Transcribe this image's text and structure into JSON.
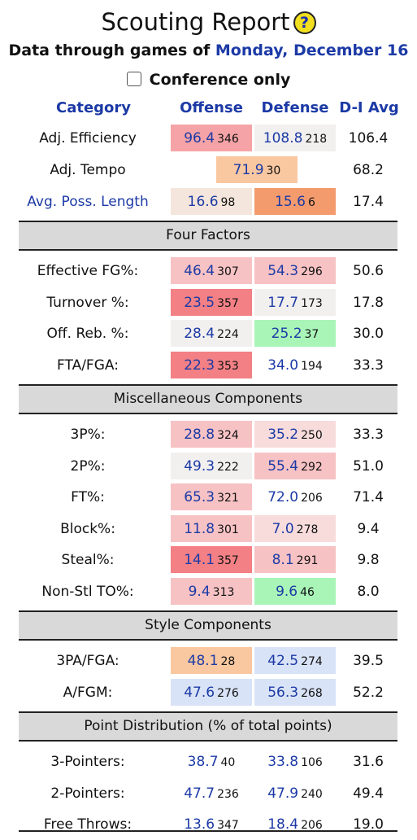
{
  "title": "Scouting Report",
  "help_icon": "?",
  "subtitle_prefix": "Data through games of",
  "subtitle_date": "Monday, December 16",
  "conference_label": "Conference only",
  "headers": {
    "category": "Category",
    "offense": "Offense",
    "defense": "Defense",
    "avg": "D-I Avg"
  },
  "colors": {
    "red-strong": "#f28084",
    "red-medium": "#f5a3a6",
    "red-light": "#f7c2c4",
    "pink-light": "#f8dcdc",
    "neutral": "#f2f0ef",
    "blue-light": "#d9e3f7",
    "peach": "#f9c7a0",
    "orange": "#f49b6e",
    "green": "#a9f5b8",
    "beige": "#f4e6dc",
    "white": "#ffffff"
  },
  "top_rows": [
    {
      "label": "Adj. Efficiency",
      "link": false,
      "off": {
        "v": "96.4",
        "r": "346",
        "c": "red-medium"
      },
      "def": {
        "v": "108.8",
        "r": "218",
        "c": "neutral"
      },
      "avg": "106.4"
    },
    {
      "label": "Adj. Tempo",
      "link": false,
      "tempo": {
        "v": "71.9",
        "r": "30",
        "c": "peach"
      },
      "avg": "68.2"
    },
    {
      "label": "Avg. Poss. Length",
      "link": true,
      "off": {
        "v": "16.6",
        "r": "98",
        "c": "beige"
      },
      "def": {
        "v": "15.6",
        "r": "6",
        "c": "orange"
      },
      "avg": "17.4"
    }
  ],
  "sections": [
    {
      "title": "Four Factors",
      "rows": [
        {
          "label": "Effective FG%:",
          "off": {
            "v": "46.4",
            "r": "307",
            "c": "red-light"
          },
          "def": {
            "v": "54.3",
            "r": "296",
            "c": "red-light"
          },
          "avg": "50.6"
        },
        {
          "label": "Turnover %:",
          "off": {
            "v": "23.5",
            "r": "357",
            "c": "red-strong"
          },
          "def": {
            "v": "17.7",
            "r": "173",
            "c": "neutral"
          },
          "avg": "17.8"
        },
        {
          "label": "Off. Reb. %:",
          "off": {
            "v": "28.4",
            "r": "224",
            "c": "neutral"
          },
          "def": {
            "v": "25.2",
            "r": "37",
            "c": "green"
          },
          "avg": "30.0"
        },
        {
          "label": "FTA/FGA:",
          "off": {
            "v": "22.3",
            "r": "353",
            "c": "red-strong"
          },
          "def": {
            "v": "34.0",
            "r": "194",
            "c": "white"
          },
          "avg": "33.3"
        }
      ]
    },
    {
      "title": "Miscellaneous Components",
      "rows": [
        {
          "label": "3P%:",
          "off": {
            "v": "28.8",
            "r": "324",
            "c": "red-light"
          },
          "def": {
            "v": "35.2",
            "r": "250",
            "c": "pink-light"
          },
          "avg": "33.3"
        },
        {
          "label": "2P%:",
          "off": {
            "v": "49.3",
            "r": "222",
            "c": "neutral"
          },
          "def": {
            "v": "55.4",
            "r": "292",
            "c": "red-light"
          },
          "avg": "51.0"
        },
        {
          "label": "FT%:",
          "off": {
            "v": "65.3",
            "r": "321",
            "c": "red-light"
          },
          "def": {
            "v": "72.0",
            "r": "206",
            "c": "white"
          },
          "avg": "71.4"
        },
        {
          "label": "Block%:",
          "off": {
            "v": "11.8",
            "r": "301",
            "c": "red-light"
          },
          "def": {
            "v": "7.0",
            "r": "278",
            "c": "pink-light"
          },
          "avg": "9.4"
        },
        {
          "label": "Steal%:",
          "off": {
            "v": "14.1",
            "r": "357",
            "c": "red-strong"
          },
          "def": {
            "v": "8.1",
            "r": "291",
            "c": "red-light"
          },
          "avg": "9.8"
        },
        {
          "label": "Non-Stl TO%:",
          "off": {
            "v": "9.4",
            "r": "313",
            "c": "red-light"
          },
          "def": {
            "v": "9.6",
            "r": "46",
            "c": "green"
          },
          "avg": "8.0"
        }
      ]
    },
    {
      "title": "Style Components",
      "rows": [
        {
          "label": "3PA/FGA:",
          "off": {
            "v": "48.1",
            "r": "28",
            "c": "peach"
          },
          "def": {
            "v": "42.5",
            "r": "274",
            "c": "blue-light"
          },
          "avg": "39.5"
        },
        {
          "label": "A/FGM:",
          "off": {
            "v": "47.6",
            "r": "276",
            "c": "blue-light"
          },
          "def": {
            "v": "56.3",
            "r": "268",
            "c": "blue-light"
          },
          "avg": "52.2"
        }
      ]
    },
    {
      "title": "Point Distribution (% of total points)",
      "rows": [
        {
          "label": "3-Pointers:",
          "off": {
            "v": "38.7",
            "r": "40",
            "c": "white"
          },
          "def": {
            "v": "33.8",
            "r": "106",
            "c": "white"
          },
          "avg": "31.6"
        },
        {
          "label": "2-Pointers:",
          "off": {
            "v": "47.7",
            "r": "236",
            "c": "white"
          },
          "def": {
            "v": "47.9",
            "r": "240",
            "c": "white"
          },
          "avg": "49.4"
        },
        {
          "label": "Free Throws:",
          "off": {
            "v": "13.6",
            "r": "347",
            "c": "white"
          },
          "def": {
            "v": "18.4",
            "r": "206",
            "c": "white"
          },
          "avg": "19.0"
        }
      ]
    }
  ]
}
